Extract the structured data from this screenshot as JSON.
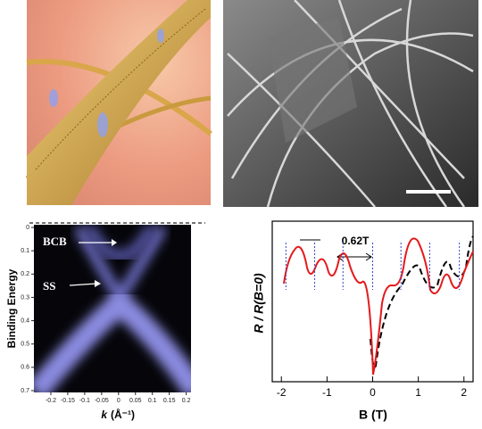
{
  "panels": {
    "arpes": {
      "y_label": "Binding Energy",
      "x_label_symbol": "k",
      "x_label_unit": "(Å⁻¹)",
      "xlim": [
        -0.25,
        0.23
      ],
      "xticks": [
        -0.2,
        -0.15,
        -0.1,
        -0.05,
        0,
        0.05,
        0.1,
        0.15,
        0.2
      ],
      "ylim": [
        0,
        0.7
      ],
      "yticks": [
        0,
        0.1,
        0.2,
        0.3,
        0.4,
        0.5,
        0.6,
        0.7
      ],
      "band_labels": [
        "BCB",
        "SS"
      ]
    },
    "magnetoresistance": {
      "y_label": "R / R(B=0)",
      "x_label": "B (T)",
      "xlim": [
        -2.2,
        2.2
      ],
      "xticks": [
        -2,
        -1,
        0,
        1,
        2
      ],
      "period_lines": [
        -1.9,
        -1.27,
        -0.65,
        0,
        0.62,
        1.25,
        1.9
      ],
      "annotation": "0.62T"
    }
  }
}
